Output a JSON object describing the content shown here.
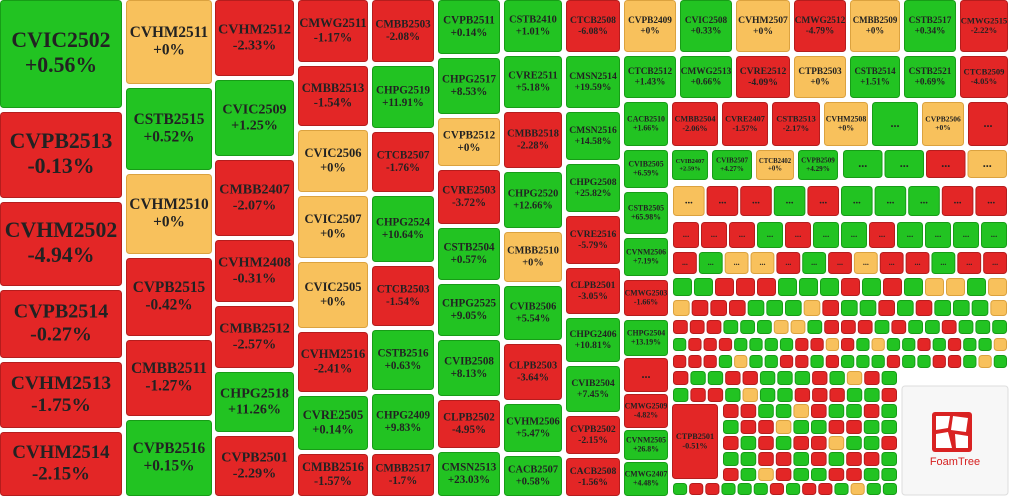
{
  "colors": {
    "g": "#22c322",
    "r": "#e32626",
    "y": "#f8c15c"
  },
  "strokes": {
    "g": "#179c17",
    "r": "#b51d1d",
    "y": "#dba23f"
  },
  "tiles": [
    {
      "name": "CVIC2502",
      "change": "+0.56%",
      "color": "g"
    },
    {
      "name": "CVPB2513",
      "change": "-0.13%",
      "color": "r"
    },
    {
      "name": "CVHM2502",
      "change": "-4.94%",
      "color": "r"
    },
    {
      "name": "CVPB2514",
      "change": "-0.27%",
      "color": "r"
    },
    {
      "name": "CVHM2513",
      "change": "-1.75%",
      "color": "r"
    },
    {
      "name": "CVHM2514",
      "change": "-2.15%",
      "color": "r"
    },
    {
      "name": "CVHM2511",
      "change": "+0%",
      "color": "y"
    },
    {
      "name": "CSTB2515",
      "change": "+0.52%",
      "color": "g"
    },
    {
      "name": "CVHM2510",
      "change": "+0%",
      "color": "y"
    },
    {
      "name": "CVPB2515",
      "change": "-0.42%",
      "color": "r"
    },
    {
      "name": "CMBB2511",
      "change": "-1.27%",
      "color": "r"
    },
    {
      "name": "CVPB2516",
      "change": "+0.15%",
      "color": "g"
    },
    {
      "name": "CVHM2512",
      "change": "-2.33%",
      "color": "r"
    },
    {
      "name": "CVIC2509",
      "change": "+1.25%",
      "color": "g"
    },
    {
      "name": "CMBB2407",
      "change": "-2.07%",
      "color": "r"
    },
    {
      "name": "CVHM2408",
      "change": "-0.31%",
      "color": "r"
    },
    {
      "name": "CMBB2512",
      "change": "-2.57%",
      "color": "r"
    },
    {
      "name": "CHPG2518",
      "change": "+11.26%",
      "color": "g"
    },
    {
      "name": "CVPB2501",
      "change": "-2.29%",
      "color": "r"
    },
    {
      "name": "CMWG2511",
      "change": "-1.17%",
      "color": "r"
    },
    {
      "name": "CMBB2513",
      "change": "-1.54%",
      "color": "r"
    },
    {
      "name": "CVIC2506",
      "change": "+0%",
      "color": "y"
    },
    {
      "name": "CVIC2507",
      "change": "+0%",
      "color": "y"
    },
    {
      "name": "CVIC2505",
      "change": "+0%",
      "color": "y"
    },
    {
      "name": "CVHM2516",
      "change": "-2.41%",
      "color": "r"
    },
    {
      "name": "CVRE2505",
      "change": "+0.14%",
      "color": "g"
    },
    {
      "name": "CMBB2516",
      "change": "-1.57%",
      "color": "r"
    },
    {
      "name": "CMBB2503",
      "change": "-2.08%",
      "color": "r"
    },
    {
      "name": "CHPG2519",
      "change": "+11.91%",
      "color": "g"
    },
    {
      "name": "CTCB2507",
      "change": "-1.76%",
      "color": "r"
    },
    {
      "name": "CHPG2524",
      "change": "+10.64%",
      "color": "g"
    },
    {
      "name": "CTCB2503",
      "change": "-1.54%",
      "color": "r"
    },
    {
      "name": "CSTB2516",
      "change": "+0.63%",
      "color": "g"
    },
    {
      "name": "CHPG2409",
      "change": "+9.83%",
      "color": "g"
    },
    {
      "name": "CMBB2517",
      "change": "-1.7%",
      "color": "r"
    },
    {
      "name": "CVPB2511",
      "change": "+0.14%",
      "color": "g"
    },
    {
      "name": "CHPG2517",
      "change": "+8.53%",
      "color": "g"
    },
    {
      "name": "CVPB2512",
      "change": "+0%",
      "color": "y"
    },
    {
      "name": "CVRE2503",
      "change": "-3.72%",
      "color": "r"
    },
    {
      "name": "CSTB2504",
      "change": "+0.57%",
      "color": "g"
    },
    {
      "name": "CHPG2525",
      "change": "+9.05%",
      "color": "g"
    },
    {
      "name": "CVIB2508",
      "change": "+8.13%",
      "color": "g"
    },
    {
      "name": "CLPB2502",
      "change": "-4.95%",
      "color": "r"
    },
    {
      "name": "CMSN2513",
      "change": "+23.03%",
      "color": "g"
    },
    {
      "name": "CSTB2410",
      "change": "+1.01%",
      "color": "g"
    },
    {
      "name": "CVRE2511",
      "change": "+5.18%",
      "color": "g"
    },
    {
      "name": "CMBB2518",
      "change": "-2.28%",
      "color": "r"
    },
    {
      "name": "CHPG2520",
      "change": "+12.66%",
      "color": "g"
    },
    {
      "name": "CMBB2510",
      "change": "+0%",
      "color": "y"
    },
    {
      "name": "CVIB2506",
      "change": "+5.54%",
      "color": "g"
    },
    {
      "name": "CLPB2503",
      "change": "-3.64%",
      "color": "r"
    },
    {
      "name": "CVHM2506",
      "change": "+5.47%",
      "color": "g"
    },
    {
      "name": "CACB2507",
      "change": "+0.58%",
      "color": "g"
    },
    {
      "name": "CTCB2508",
      "change": "-6.08%",
      "color": "r"
    },
    {
      "name": "CMSN2514",
      "change": "+19.59%",
      "color": "g"
    },
    {
      "name": "CMSN2516",
      "change": "+14.58%",
      "color": "g"
    },
    {
      "name": "CHPG2508",
      "change": "+25.82%",
      "color": "g"
    },
    {
      "name": "CVRE2516",
      "change": "-5.79%",
      "color": "r"
    },
    {
      "name": "CLPB2501",
      "change": "-3.05%",
      "color": "r"
    },
    {
      "name": "CHPG2406",
      "change": "+10.81%",
      "color": "g"
    },
    {
      "name": "CVIB2504",
      "change": "+7.45%",
      "color": "g"
    },
    {
      "name": "CVPB2502",
      "change": "-2.15%",
      "color": "r"
    },
    {
      "name": "CACB2508",
      "change": "-1.56%",
      "color": "r"
    },
    {
      "name": "CVPB2409",
      "change": "+0%",
      "color": "y"
    },
    {
      "name": "CVIC2508",
      "change": "+0.33%",
      "color": "g"
    },
    {
      "name": "CVHM2507",
      "change": "+0%",
      "color": "y"
    },
    {
      "name": "CMWG2512",
      "change": "-4.79%",
      "color": "r"
    },
    {
      "name": "CMBB2509",
      "change": "+0%",
      "color": "y"
    },
    {
      "name": "CSTB2517",
      "change": "+0.34%",
      "color": "g"
    },
    {
      "name": "CMWG2515",
      "change": "-2.22%",
      "color": "r"
    },
    {
      "name": "CTCB2512",
      "change": "+1.43%",
      "color": "g"
    },
    {
      "name": "CMWG2513",
      "change": "+0.66%",
      "color": "g"
    },
    {
      "name": "CVRE2512",
      "change": "-4.09%",
      "color": "r"
    },
    {
      "name": "CTPB2503",
      "change": "+0%",
      "color": "y"
    },
    {
      "name": "CSTB2514",
      "change": "+1.51%",
      "color": "g"
    },
    {
      "name": "CSTB2521",
      "change": "+0.69%",
      "color": "g"
    },
    {
      "name": "CTCB2509",
      "change": "-4.05%",
      "color": "r"
    },
    {
      "name": "CACB2510",
      "change": "+1.66%",
      "color": "g"
    },
    {
      "name": "CMBB2504",
      "change": "-2.06%",
      "color": "r"
    },
    {
      "name": "CVRE2407",
      "change": "-1.57%",
      "color": "r"
    },
    {
      "name": "CSTB2513",
      "change": "-2.17%",
      "color": "r"
    },
    {
      "name": "CVHM2508",
      "change": "+0%",
      "color": "y"
    },
    {
      "name": "...",
      "change": null,
      "color": "g"
    },
    {
      "name": "CVPB2506",
      "change": "+0%",
      "color": "y"
    },
    {
      "name": "...",
      "change": null,
      "color": "r"
    },
    {
      "name": "CVIB2505",
      "change": "+6.59%",
      "color": "g"
    },
    {
      "name": "CSTB2505",
      "change": "+65.98%",
      "color": "g"
    },
    {
      "name": "CVNM2506",
      "change": "+7.19%",
      "color": "g"
    },
    {
      "name": "CMWG2503",
      "change": "-1.66%",
      "color": "r"
    },
    {
      "name": "CHPG2504",
      "change": "+13.19%",
      "color": "g"
    },
    {
      "name": "...",
      "change": null,
      "color": "r"
    },
    {
      "name": "CMWG2509",
      "change": "-4.82%",
      "color": "r"
    },
    {
      "name": "CVNM2505",
      "change": "+26.8%",
      "color": "g"
    },
    {
      "name": "CMWG2407",
      "change": "+4.48%",
      "color": "g"
    },
    {
      "name": "CVIB2407",
      "change": "+2.59%",
      "color": "g"
    },
    {
      "name": "CVIB2507",
      "change": "+4.27%",
      "color": "g"
    },
    {
      "name": "CTCB2402",
      "change": "+0%",
      "color": "y"
    },
    {
      "name": "CVPB2509",
      "change": "+4.29%",
      "color": "g"
    },
    {
      "name": "CTPB2501",
      "change": "-0.51%",
      "color": "r"
    }
  ],
  "more_label": "...",
  "small_tiles": [
    "ggry",
    "yrrgrgggrr",
    "rrrgrggrgggg",
    "rgyyrgryrrgrr",
    "ggrrrgggrgrgyygy",
    "yrrrgggyrggrgrgggy",
    "rrrgggyygrrrgrggrggg",
    "grrrggggrryrgyggrgrggy",
    "rrrgyggrrgrgggrggrrgyg",
    "rggrrgggrgyrg",
    "grrgyggrrrggr",
    "rrggyrggrg",
    "grryggrrgg",
    "rgrgrryggr",
    "ggrrgrgrrg",
    "rgyrggrrgg",
    "grrgggrgrrgygg"
  ],
  "logo": "FoamTree"
}
